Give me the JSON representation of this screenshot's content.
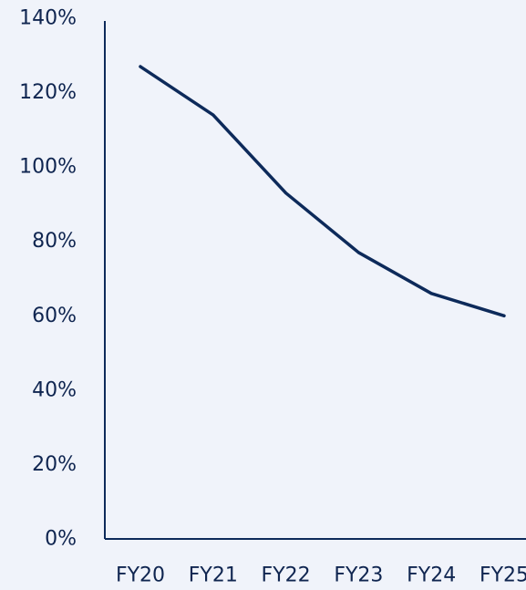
{
  "chart_data": {
    "type": "line",
    "title": "",
    "xlabel": "",
    "ylabel": "",
    "categories": [
      "FY20",
      "FY21",
      "FY22",
      "FY23",
      "FY24",
      "FY25"
    ],
    "series": [
      {
        "values": [
          127,
          114,
          93,
          77,
          66,
          60
        ]
      }
    ],
    "ylim": [
      0,
      140
    ],
    "y_ticks": [
      0,
      20,
      40,
      60,
      80,
      100,
      120,
      140
    ],
    "y_tick_format": "percent",
    "grid": false,
    "legend": "none",
    "line_color": "#0d2a5a",
    "axis_color": "#0d2a5a",
    "text_color": "#0f2550",
    "background_color": "#f0f3fa"
  }
}
